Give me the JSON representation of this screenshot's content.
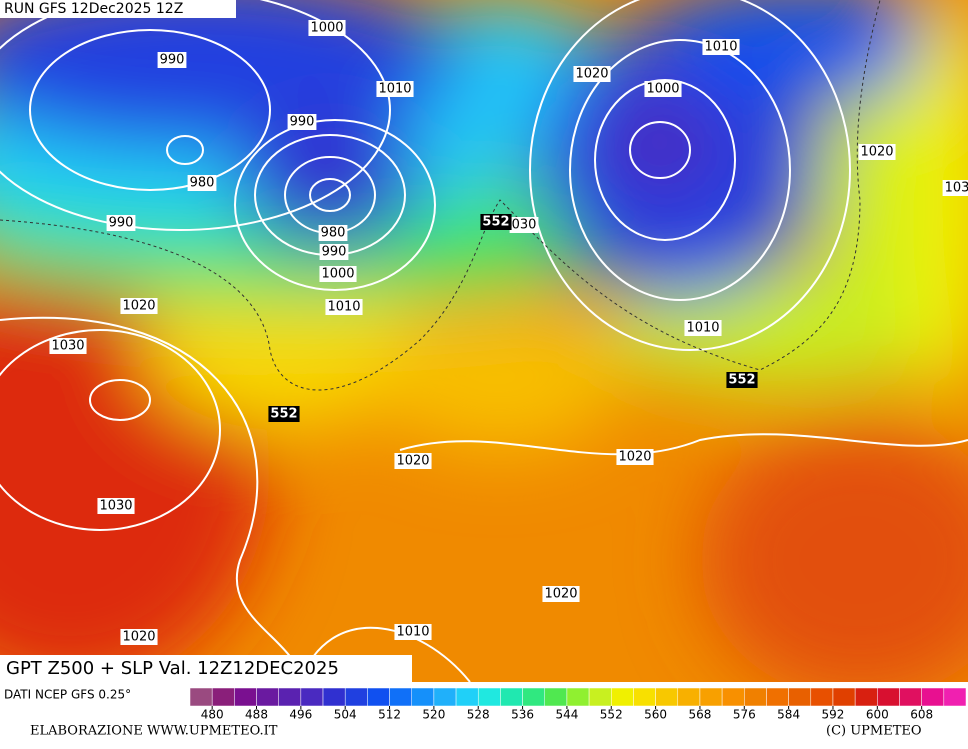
{
  "header": {
    "run_label": "RUN GFS 12Dec2025 12Z"
  },
  "map": {
    "isobar_labels": [
      "1000",
      "990",
      "1010",
      "990",
      "980",
      "980",
      "990",
      "1000",
      "1010",
      "990",
      "1020",
      "1030",
      "1030",
      "1020",
      "1020",
      "1010",
      "1020",
      "1020",
      "1010",
      "1000",
      "1020",
      "1010",
      "1020",
      "103",
      "030"
    ],
    "height_labels": [
      "552",
      "552",
      "552"
    ]
  },
  "footer": {
    "title": "GPT Z500 + SLP Val. 12Z12DEC2025",
    "source": "DATI NCEP GFS 0.25°",
    "credit": "ELABORAZIONE WWW.UPMETEO.IT",
    "copyright": "(C) UPMETEO"
  },
  "colorbar": {
    "range": [
      476,
      616
    ],
    "ticks": [
      480,
      488,
      496,
      504,
      512,
      520,
      528,
      536,
      544,
      552,
      560,
      568,
      576,
      584,
      592,
      600,
      608
    ],
    "colors": [
      "#9a4a80",
      "#8a1f7a",
      "#7a1090",
      "#6a1aa0",
      "#5a22b0",
      "#4a2ac0",
      "#3030d0",
      "#2040e0",
      "#1050f0",
      "#1070f8",
      "#1590fa",
      "#20b0fa",
      "#20d0f8",
      "#20e8e0",
      "#20e8b0",
      "#30e880",
      "#50e850",
      "#90f030",
      "#c8f020",
      "#f0f000",
      "#f8e000",
      "#f8c800",
      "#f8b000",
      "#f8a000",
      "#f89000",
      "#f08000",
      "#f07000",
      "#e86000",
      "#e85000",
      "#e04000",
      "#d82010",
      "#d81030",
      "#e01060",
      "#e81090",
      "#f020b0"
    ]
  }
}
